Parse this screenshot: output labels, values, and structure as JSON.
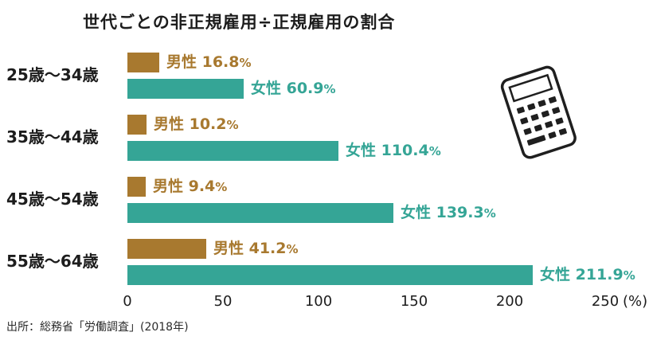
{
  "title": "世代ごとの非正規雇用÷正規雇用の割合",
  "source": "出所：総務省「労働調査」(2018年)",
  "colors": {
    "male": "#a8792f",
    "female": "#35a596",
    "text": "#1d1d1d"
  },
  "icons": {
    "calculator": "calculator-icon"
  },
  "chart_data": {
    "type": "bar",
    "orientation": "horizontal",
    "title": "世代ごとの非正規雇用÷正規雇用の割合",
    "categories": [
      "25歳〜34歳",
      "35歳〜44歳",
      "45歳〜54歳",
      "55歳〜64歳"
    ],
    "series": [
      {
        "name": "男性",
        "color": "#a8792f",
        "values": [
          16.8,
          10.2,
          9.4,
          41.2
        ]
      },
      {
        "name": "女性",
        "color": "#35a596",
        "values": [
          60.9,
          110.4,
          139.3,
          211.9
        ]
      }
    ],
    "value_suffix": "%",
    "x_ticks": [
      0,
      50,
      100,
      150,
      200,
      250
    ],
    "x_axis_suffix": "(%)",
    "xlim": [
      0,
      250
    ],
    "grid": false,
    "legend": "labels-on-bars",
    "source_note": "出所：総務省「労働調査」(2018年)"
  }
}
